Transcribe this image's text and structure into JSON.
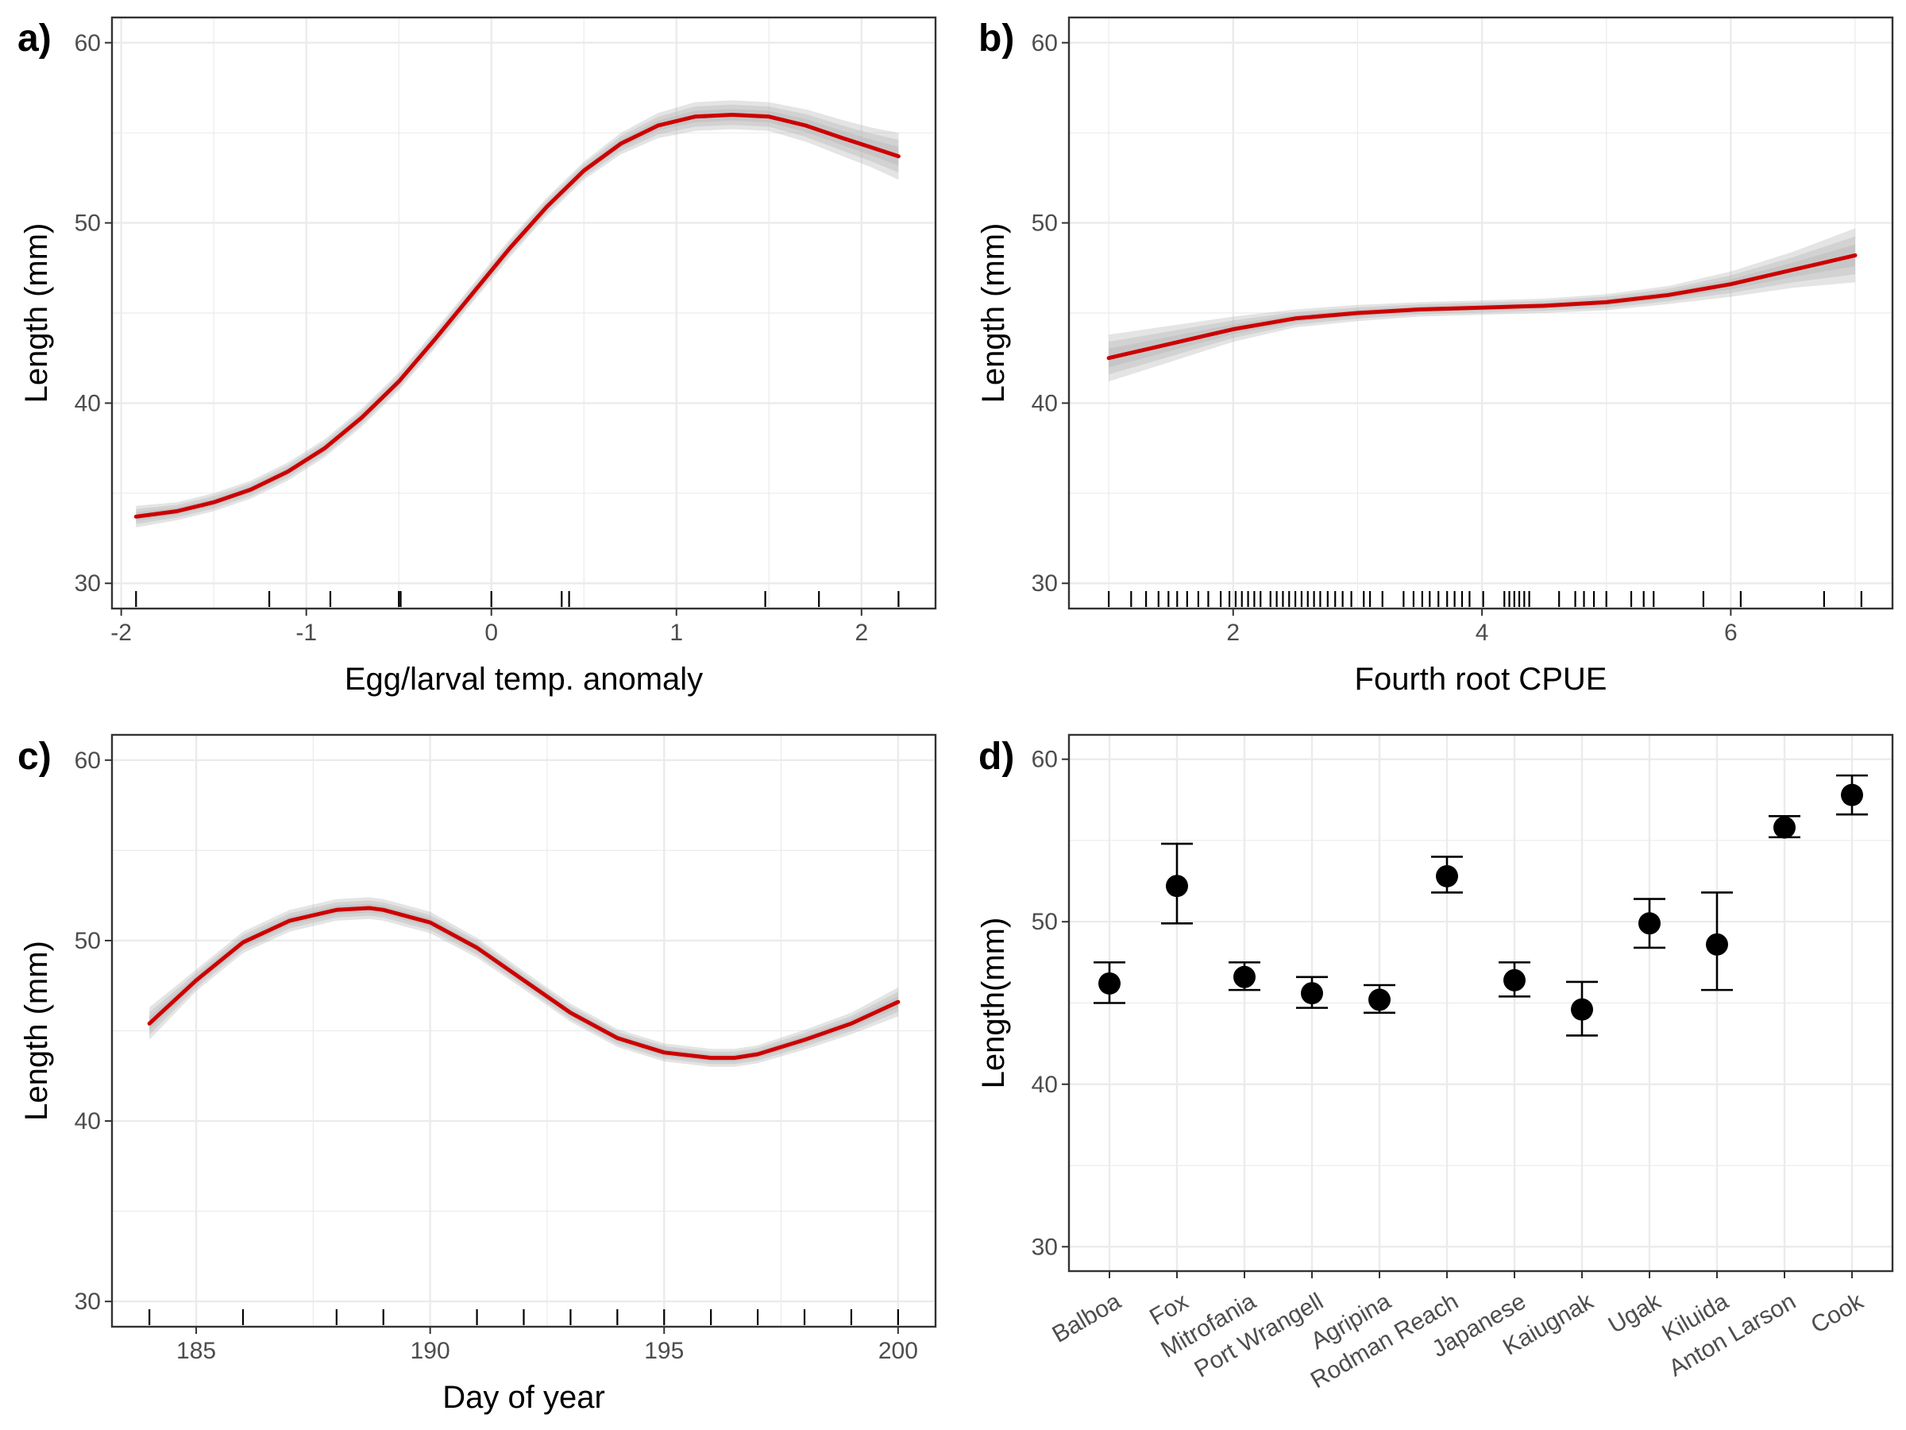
{
  "chart_data": [
    {
      "tag": "a)",
      "type": "line",
      "xlabel": "Egg/larval temp. anomaly",
      "ylabel": "Length (mm)",
      "xlim": [
        -2.05,
        2.4
      ],
      "ylim": [
        28.6,
        61.4
      ],
      "xticks": [
        -2,
        -1,
        0,
        1,
        2
      ],
      "xtick_labels": [
        "-2",
        "-1",
        "0",
        "1",
        "2"
      ],
      "yticks": [
        30,
        40,
        50,
        60
      ],
      "ytick_labels": [
        "30",
        "40",
        "50",
        "60"
      ],
      "grid": true,
      "line_color": "#cc0000",
      "band_color": "#b3b3b3",
      "series": [
        {
          "x": [
            -1.92,
            -1.7,
            -1.5,
            -1.3,
            -1.1,
            -0.9,
            -0.7,
            -0.5,
            -0.3,
            -0.1,
            0.1,
            0.3,
            0.5,
            0.7,
            0.9,
            1.1,
            1.3,
            1.5,
            1.7,
            1.9,
            2.05,
            2.2
          ],
          "y": [
            33.7,
            34.0,
            34.5,
            35.2,
            36.2,
            37.5,
            39.2,
            41.2,
            43.6,
            46.1,
            48.6,
            50.9,
            52.9,
            54.4,
            55.4,
            55.9,
            56.0,
            55.9,
            55.4,
            54.7,
            54.2,
            53.7
          ],
          "band": [
            0.6,
            0.5,
            0.5,
            0.5,
            0.5,
            0.5,
            0.5,
            0.5,
            0.5,
            0.5,
            0.5,
            0.5,
            0.5,
            0.6,
            0.7,
            0.8,
            0.8,
            0.8,
            0.9,
            1.0,
            1.1,
            1.3
          ]
        }
      ],
      "rug": [
        -1.92,
        -1.2,
        -0.87,
        -0.5,
        -0.49,
        0.0,
        0.38,
        0.42,
        1.48,
        1.77,
        2.2
      ]
    },
    {
      "tag": "b)",
      "type": "line",
      "xlabel": "Fourth root CPUE",
      "ylabel": "Length (mm)",
      "xlim": [
        0.68,
        7.3
      ],
      "ylim": [
        28.6,
        61.4
      ],
      "xticks": [
        2,
        4,
        6
      ],
      "xtick_labels": [
        "2",
        "4",
        "6"
      ],
      "yticks": [
        30,
        40,
        50,
        60
      ],
      "ytick_labels": [
        "30",
        "40",
        "50",
        "60"
      ],
      "grid": true,
      "line_color": "#cc0000",
      "band_color": "#b3b3b3",
      "series": [
        {
          "x": [
            1.0,
            1.5,
            2.0,
            2.5,
            3.0,
            3.5,
            4.0,
            4.5,
            5.0,
            5.5,
            6.0,
            6.5,
            7.0
          ],
          "y": [
            42.5,
            43.3,
            44.1,
            44.7,
            45.0,
            45.2,
            45.3,
            45.4,
            45.6,
            46.0,
            46.6,
            47.4,
            48.2
          ],
          "band": [
            1.3,
            1.0,
            0.7,
            0.5,
            0.45,
            0.4,
            0.4,
            0.4,
            0.45,
            0.5,
            0.7,
            1.0,
            1.5
          ]
        }
      ],
      "rug": [
        1.0,
        1.18,
        1.3,
        1.4,
        1.48,
        1.55,
        1.63,
        1.72,
        1.8,
        1.9,
        1.97,
        2.02,
        2.07,
        2.12,
        2.17,
        2.22,
        2.3,
        2.35,
        2.4,
        2.45,
        2.5,
        2.55,
        2.6,
        2.65,
        2.7,
        2.76,
        2.82,
        2.88,
        2.95,
        3.05,
        3.1,
        3.2,
        3.37,
        3.45,
        3.52,
        3.58,
        3.65,
        3.72,
        3.78,
        3.84,
        3.9,
        4.01,
        4.18,
        4.22,
        4.26,
        4.3,
        4.34,
        4.38,
        4.62,
        4.75,
        4.82,
        4.9,
        5.0,
        5.2,
        5.3,
        5.38,
        5.78,
        6.08,
        6.75,
        7.05
      ]
    },
    {
      "tag": "c)",
      "type": "line",
      "xlabel": "Day of year",
      "ylabel": "Length (mm)",
      "xlim": [
        183.2,
        200.8
      ],
      "ylim": [
        28.6,
        61.4
      ],
      "xticks": [
        185,
        190,
        195,
        200
      ],
      "xtick_labels": [
        "185",
        "190",
        "195",
        "200"
      ],
      "yticks": [
        30,
        40,
        50,
        60
      ],
      "ytick_labels": [
        "30",
        "40",
        "50",
        "60"
      ],
      "grid": true,
      "line_color": "#cc0000",
      "band_color": "#b3b3b3",
      "series": [
        {
          "x": [
            184,
            185,
            186,
            187,
            188,
            188.7,
            189,
            190,
            191,
            192,
            193,
            194,
            195,
            196,
            196.5,
            197,
            198,
            199,
            200
          ],
          "y": [
            45.4,
            47.8,
            49.9,
            51.1,
            51.7,
            51.8,
            51.7,
            51.0,
            49.6,
            47.8,
            46.0,
            44.6,
            43.8,
            43.5,
            43.5,
            43.7,
            44.5,
            45.4,
            46.6
          ],
          "band": [
            0.9,
            0.6,
            0.6,
            0.6,
            0.6,
            0.6,
            0.6,
            0.6,
            0.55,
            0.5,
            0.5,
            0.5,
            0.5,
            0.5,
            0.5,
            0.5,
            0.55,
            0.6,
            0.8
          ]
        }
      ],
      "rug": [
        184,
        186,
        188,
        189,
        191,
        192,
        193,
        194,
        195,
        196,
        197,
        198,
        199,
        200
      ]
    },
    {
      "tag": "d)",
      "type": "scatter",
      "xlabel": "",
      "ylabel": "Length(mm)",
      "ylim": [
        28.5,
        61.5
      ],
      "yticks": [
        30,
        40,
        50,
        60
      ],
      "ytick_labels": [
        "30",
        "40",
        "50",
        "60"
      ],
      "grid": true,
      "categories": [
        "Balboa",
        "Fox",
        "Mitrofania",
        "Port Wrangell",
        "Agripina",
        "Rodman Reach",
        "Japanese",
        "Kaiugnak",
        "Ugak",
        "Kiluida",
        "Anton Larson",
        "Cook"
      ],
      "values": [
        46.2,
        52.2,
        46.6,
        45.6,
        45.2,
        52.8,
        46.4,
        44.6,
        49.9,
        48.6,
        55.8,
        57.8
      ],
      "lower": [
        45.0,
        49.9,
        45.8,
        44.7,
        44.4,
        51.8,
        45.4,
        43.0,
        48.4,
        45.8,
        55.2,
        56.6
      ],
      "upper": [
        47.5,
        54.8,
        47.5,
        46.6,
        46.1,
        54.0,
        47.5,
        46.3,
        51.4,
        51.8,
        56.5,
        59.0
      ]
    }
  ]
}
